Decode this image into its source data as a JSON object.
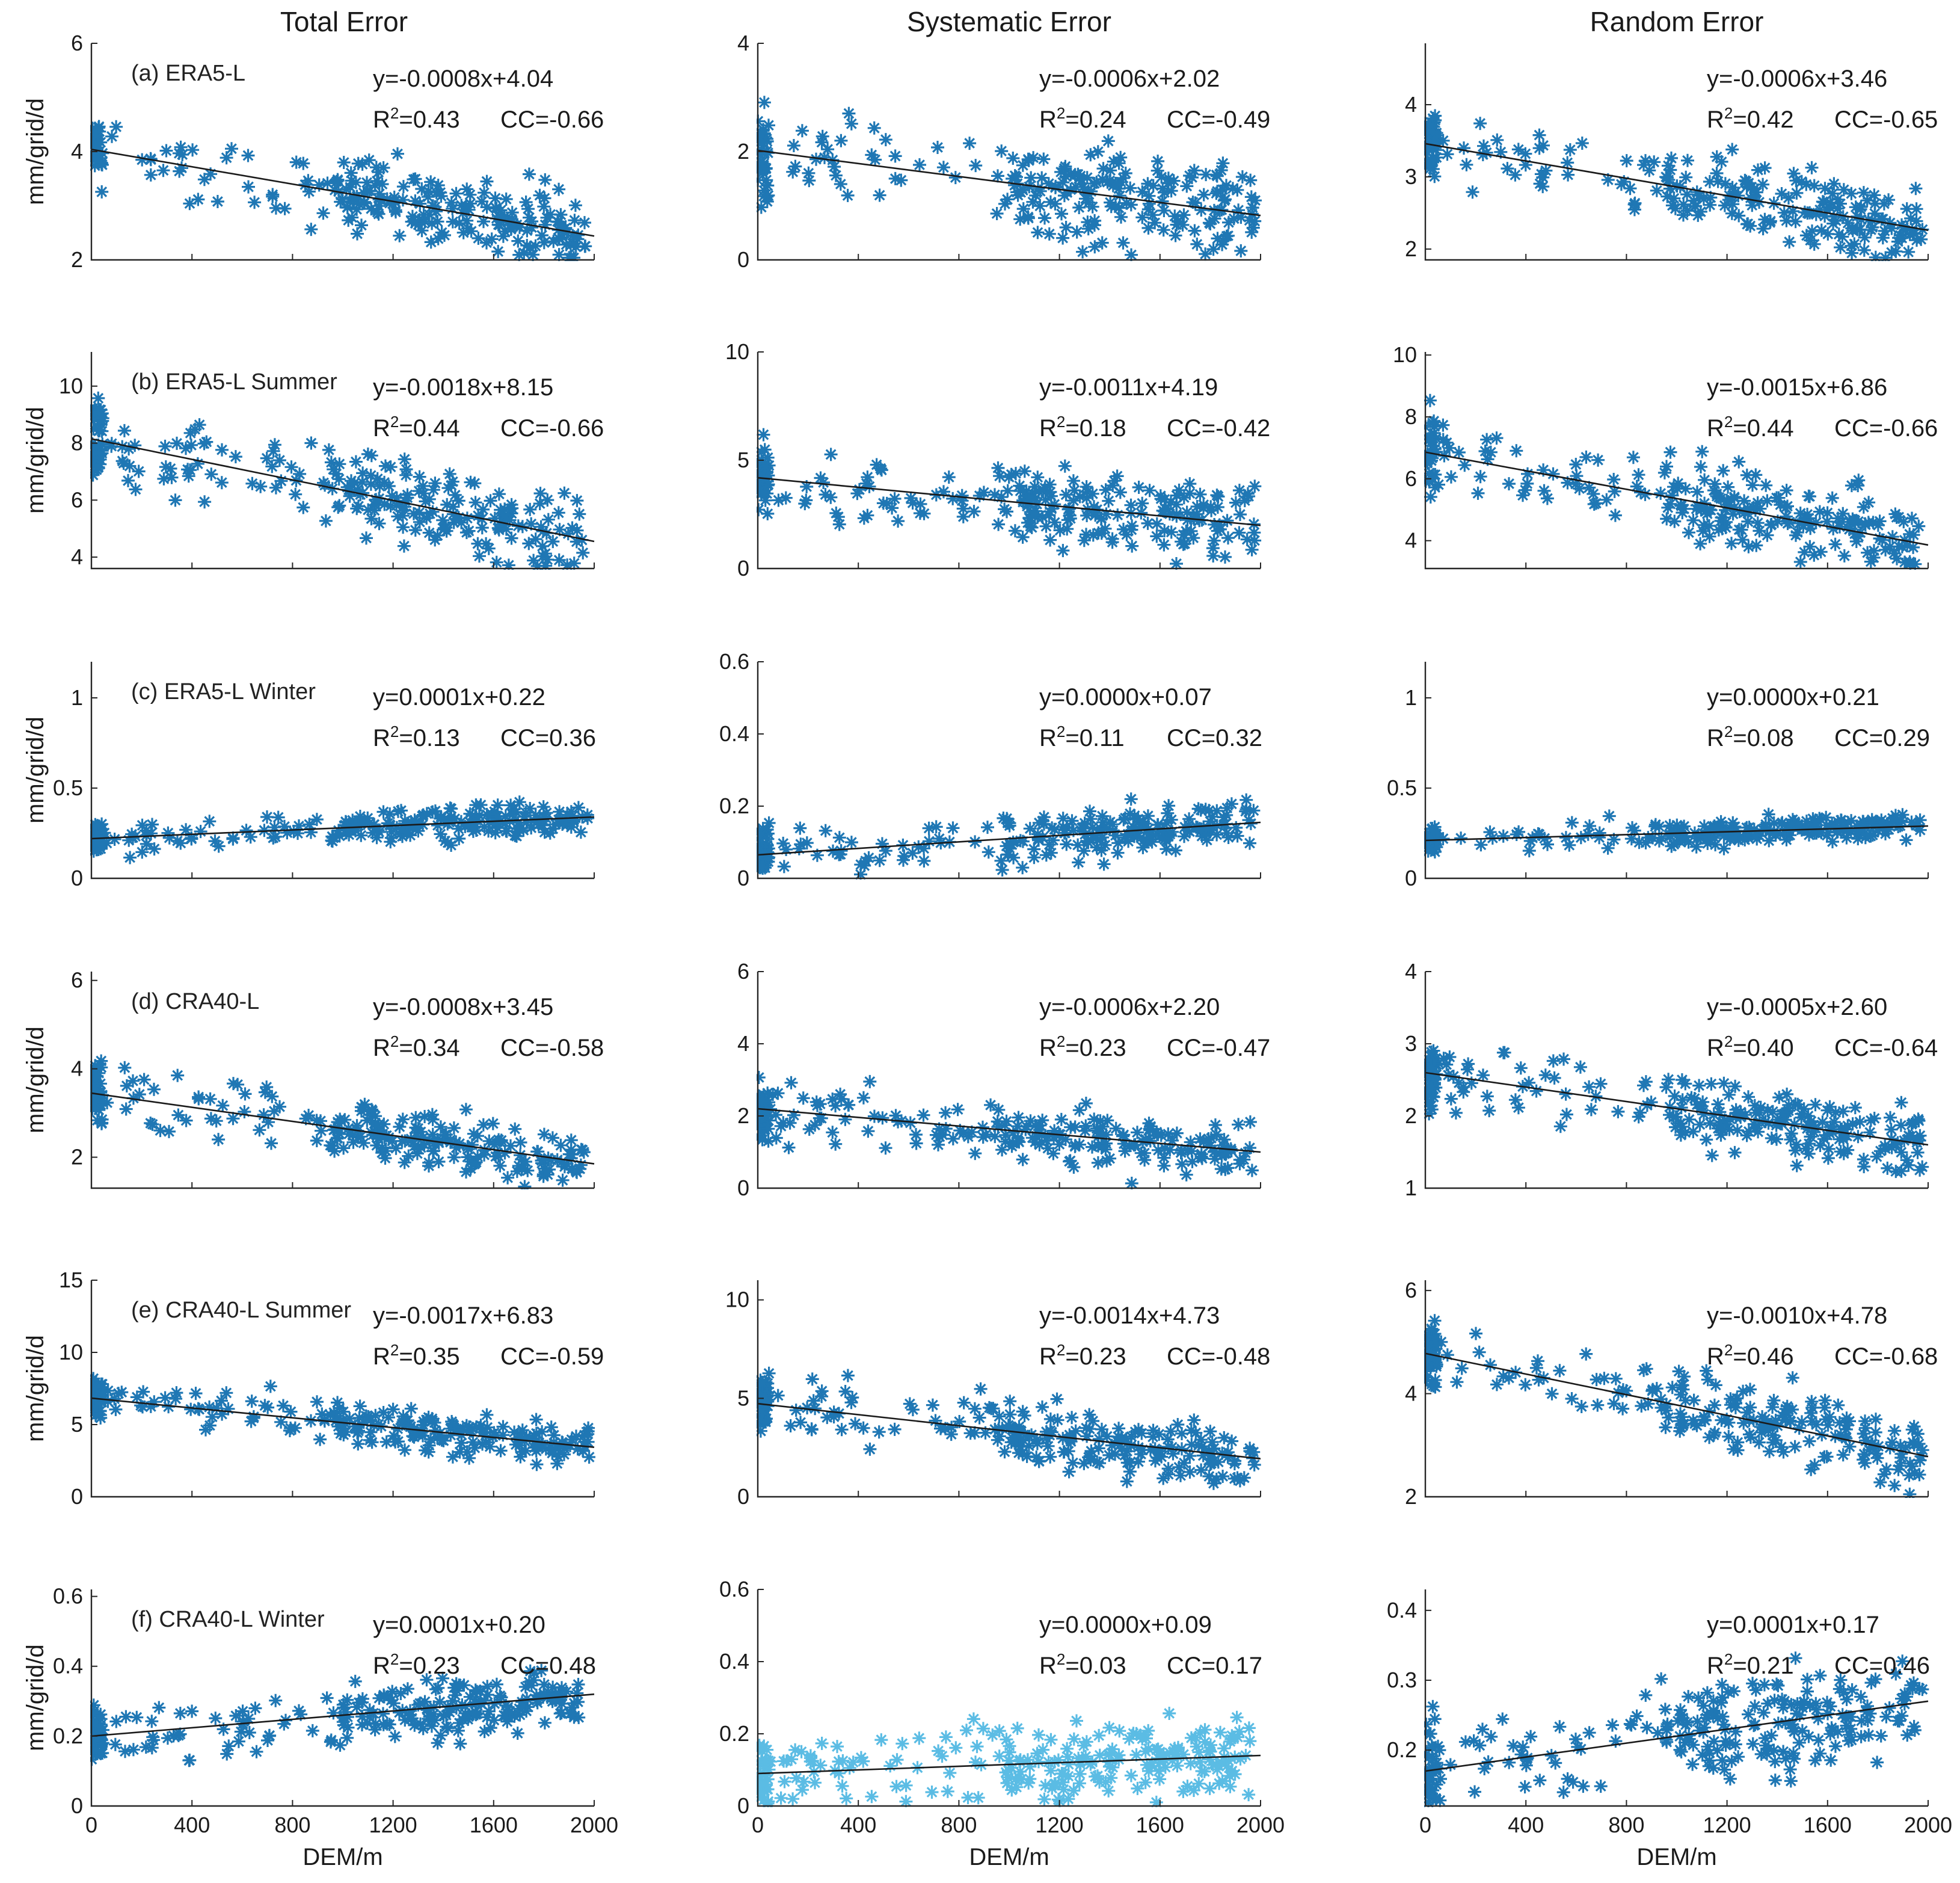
{
  "colors": {
    "marker": "#1f77b4",
    "marker_light": "#5bbce4",
    "line": "#1a1a1a",
    "axis": "#262626"
  },
  "chart_data": {
    "type": "scatter",
    "column_titles": [
      "Total Error",
      "Systematic Error",
      "Random Error"
    ],
    "row_labels": [
      "(a) ERA5-L",
      "(b) ERA5-L Summer",
      "(c) ERA5-L Winter",
      "(d) CRA40-L",
      "(e) CRA40-L Summer",
      "(f) CRA40-L Winter"
    ],
    "xlabel": "DEM/m",
    "ylabel": "mm/grid/d",
    "xlim": [
      0,
      2000
    ],
    "xticks": [
      0,
      400,
      800,
      1200,
      1600,
      2000
    ],
    "xtick_labels": [
      "0",
      "400",
      "800",
      "1200",
      "1600",
      "2000"
    ],
    "marker": "asterisk",
    "panels": [
      {
        "row": 0,
        "col": 0,
        "ylim": [
          2,
          6
        ],
        "yticks": [
          2,
          4,
          6
        ],
        "ytick_labels": [
          "2",
          "4",
          "6"
        ],
        "slope": -0.0008,
        "intercept": 4.04,
        "spread": 0.45,
        "equation": "y=-0.0008x+4.04",
        "r2_prefix": "R",
        "r2_value": "=0.43",
        "cc": "CC=-0.66"
      },
      {
        "row": 0,
        "col": 1,
        "ylim": [
          0,
          4
        ],
        "yticks": [
          0,
          2,
          4
        ],
        "ytick_labels": [
          "0",
          "2",
          "4"
        ],
        "slope": -0.0006,
        "intercept": 2.02,
        "spread": 0.6,
        "equation": "y=-0.0006x+2.02",
        "r2_prefix": "R",
        "r2_value": "=0.24",
        "cc": "CC=-0.49"
      },
      {
        "row": 0,
        "col": 2,
        "ylim": [
          1.85,
          4.85
        ],
        "yticks": [
          2,
          3,
          4
        ],
        "ytick_labels": [
          "2",
          "3",
          "4"
        ],
        "slope": -0.0006,
        "intercept": 3.46,
        "spread": 0.35,
        "equation": "y=-0.0006x+3.46",
        "r2_prefix": "R",
        "r2_value": "=0.42",
        "cc": "CC=-0.65"
      },
      {
        "row": 1,
        "col": 0,
        "ylim": [
          3.6,
          11.2
        ],
        "yticks": [
          4,
          6,
          8,
          10
        ],
        "ytick_labels": [
          "4",
          "6",
          "8",
          "10"
        ],
        "slope": -0.0018,
        "intercept": 8.15,
        "spread": 1.0,
        "equation": "y=-0.0018x+8.15",
        "r2_prefix": "R",
        "r2_value": "=0.44",
        "cc": "CC=-0.66"
      },
      {
        "row": 1,
        "col": 1,
        "ylim": [
          0,
          10
        ],
        "yticks": [
          0,
          5,
          10
        ],
        "ytick_labels": [
          "0",
          "5",
          "10"
        ],
        "slope": -0.0011,
        "intercept": 4.19,
        "spread": 1.2,
        "equation": "y=-0.0011x+4.19",
        "r2_prefix": "R",
        "r2_value": "=0.18",
        "cc": "CC=-0.42"
      },
      {
        "row": 1,
        "col": 2,
        "ylim": [
          3.1,
          10.1
        ],
        "yticks": [
          4,
          6,
          8,
          10
        ],
        "ytick_labels": [
          "4",
          "6",
          "8",
          "10"
        ],
        "slope": -0.0015,
        "intercept": 6.86,
        "spread": 0.9,
        "equation": "y=-0.0015x+6.86",
        "r2_prefix": "R",
        "r2_value": "=0.44",
        "cc": "CC=-0.66"
      },
      {
        "row": 2,
        "col": 0,
        "ylim": [
          0,
          1.2
        ],
        "yticks": [
          0,
          0.5,
          1
        ],
        "ytick_labels": [
          "0",
          "0.5",
          "1"
        ],
        "slope": 6e-05,
        "intercept": 0.22,
        "spread": 0.06,
        "equation": "y=0.0001x+0.22",
        "r2_prefix": "R",
        "r2_value": "=0.13",
        "cc": "CC=0.36"
      },
      {
        "row": 2,
        "col": 1,
        "ylim": [
          0,
          0.6
        ],
        "yticks": [
          0,
          0.2,
          0.4,
          0.6
        ],
        "ytick_labels": [
          "0",
          "0.2",
          "0.4",
          "0.6"
        ],
        "slope": 4.5e-05,
        "intercept": 0.065,
        "spread": 0.045,
        "equation": "y=0.0000x+0.07",
        "r2_prefix": "R",
        "r2_value": "=0.11",
        "cc": "CC=0.32"
      },
      {
        "row": 2,
        "col": 2,
        "ylim": [
          0,
          1.2
        ],
        "yticks": [
          0,
          0.5,
          1
        ],
        "ytick_labels": [
          "0",
          "0.5",
          "1"
        ],
        "slope": 4e-05,
        "intercept": 0.21,
        "spread": 0.05,
        "equation": "y=0.0000x+0.21",
        "r2_prefix": "R",
        "r2_value": "=0.08",
        "cc": "CC=0.29"
      },
      {
        "row": 3,
        "col": 0,
        "ylim": [
          1.3,
          6.2
        ],
        "yticks": [
          2,
          4,
          6
        ],
        "ytick_labels": [
          "2",
          "4",
          "6"
        ],
        "slope": -0.0008,
        "intercept": 3.45,
        "spread": 0.45,
        "equation": "y=-0.0008x+3.45",
        "r2_prefix": "R",
        "r2_value": "=0.34",
        "cc": "CC=-0.58"
      },
      {
        "row": 3,
        "col": 1,
        "ylim": [
          0,
          6
        ],
        "yticks": [
          0,
          2,
          4,
          6
        ],
        "ytick_labels": [
          "0",
          "2",
          "4",
          "6"
        ],
        "slope": -0.0006,
        "intercept": 2.2,
        "spread": 0.55,
        "equation": "y=-0.0006x+2.20",
        "r2_prefix": "R",
        "r2_value": "=0.23",
        "cc": "CC=-0.47"
      },
      {
        "row": 3,
        "col": 2,
        "ylim": [
          1,
          4
        ],
        "yticks": [
          1,
          2,
          3,
          4
        ],
        "ytick_labels": [
          "1",
          "2",
          "3",
          "4"
        ],
        "slope": -0.0005,
        "intercept": 2.6,
        "spread": 0.3,
        "equation": "y=-0.0005x+2.60",
        "r2_prefix": "R",
        "r2_value": "=0.40",
        "cc": "CC=-0.64"
      },
      {
        "row": 4,
        "col": 0,
        "ylim": [
          0,
          15
        ],
        "yticks": [
          0,
          5,
          10,
          15
        ],
        "ytick_labels": [
          "0",
          "5",
          "10",
          "15"
        ],
        "slope": -0.0017,
        "intercept": 6.83,
        "spread": 0.9,
        "equation": "y=-0.0017x+6.83",
        "r2_prefix": "R",
        "r2_value": "=0.35",
        "cc": "CC=-0.59"
      },
      {
        "row": 4,
        "col": 1,
        "ylim": [
          0,
          11
        ],
        "yticks": [
          0,
          5,
          10
        ],
        "ytick_labels": [
          "0",
          "5",
          "10"
        ],
        "slope": -0.0014,
        "intercept": 4.73,
        "spread": 1.1,
        "equation": "y=-0.0014x+4.73",
        "r2_prefix": "R",
        "r2_value": "=0.23",
        "cc": "CC=-0.48"
      },
      {
        "row": 4,
        "col": 2,
        "ylim": [
          2,
          6.2
        ],
        "yticks": [
          2,
          4,
          6
        ],
        "ytick_labels": [
          "2",
          "4",
          "6"
        ],
        "slope": -0.001,
        "intercept": 4.78,
        "spread": 0.5,
        "equation": "y=-0.0010x+4.78",
        "r2_prefix": "R",
        "r2_value": "=0.46",
        "cc": "CC=-0.68"
      },
      {
        "row": 5,
        "col": 0,
        "ylim": [
          0,
          0.62
        ],
        "yticks": [
          0,
          0.2,
          0.4,
          0.6
        ],
        "ytick_labels": [
          "0",
          "0.2",
          "0.4",
          "0.6"
        ],
        "slope": 6e-05,
        "intercept": 0.2,
        "spread": 0.06,
        "equation": "y=0.0001x+0.20",
        "r2_prefix": "R",
        "r2_value": "=0.23",
        "cc": "CC=0.48"
      },
      {
        "row": 5,
        "col": 1,
        "ylim": [
          0,
          0.6
        ],
        "yticks": [
          0,
          0.2,
          0.4,
          0.6
        ],
        "ytick_labels": [
          "0",
          "0.2",
          "0.4",
          "0.6"
        ],
        "slope": 2.5e-05,
        "intercept": 0.09,
        "spread": 0.07,
        "equation": "y=0.0000x+0.09",
        "r2_prefix": "R",
        "r2_value": "=0.03",
        "cc": "CC=0.17",
        "light": true
      },
      {
        "row": 5,
        "col": 2,
        "ylim": [
          0.12,
          0.43
        ],
        "yticks": [
          0.2,
          0.3,
          0.4
        ],
        "ytick_labels": [
          "0.2",
          "0.3",
          "0.4"
        ],
        "slope": 5e-05,
        "intercept": 0.17,
        "spread": 0.05,
        "equation": "y=0.0001x+0.17",
        "r2_prefix": "R",
        "r2_value": "=0.21",
        "cc": "CC=0.46"
      }
    ]
  }
}
